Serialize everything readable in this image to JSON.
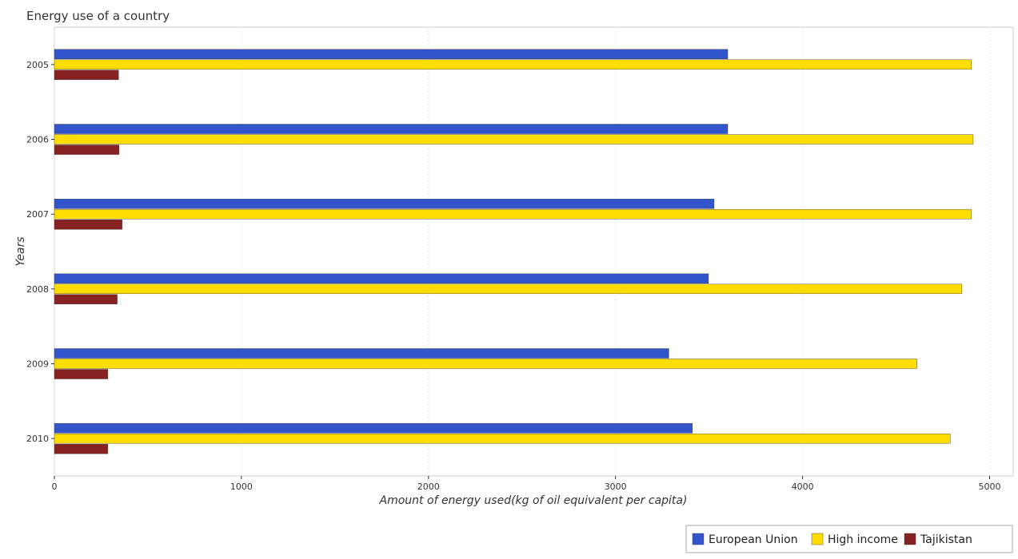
{
  "chart_data": {
    "type": "bar",
    "orientation": "horizontal",
    "title": "Energy use of a country",
    "xlabel": "Amount of energy used(kg of oil equivalent per capita)",
    "ylabel": "Years",
    "categories": [
      "2005",
      "2006",
      "2007",
      "2008",
      "2009",
      "2010"
    ],
    "series": [
      {
        "name": "European Union",
        "color": "#3355cc",
        "values": [
          3600,
          3600,
          3527,
          3497,
          3285,
          3411
        ]
      },
      {
        "name": "High income",
        "color": "#ffdd00",
        "values": [
          4903,
          4912,
          4902,
          4852,
          4611,
          4790
        ]
      },
      {
        "name": "Tajikistan",
        "color": "#882222",
        "values": [
          343,
          346,
          362,
          336,
          286,
          286
        ]
      }
    ],
    "xlim": [
      0,
      5150
    ],
    "xticks": [
      "0",
      "1000",
      "2000",
      "3000",
      "4000",
      "5000"
    ],
    "grid": true,
    "legend_position": "bottom-right"
  }
}
